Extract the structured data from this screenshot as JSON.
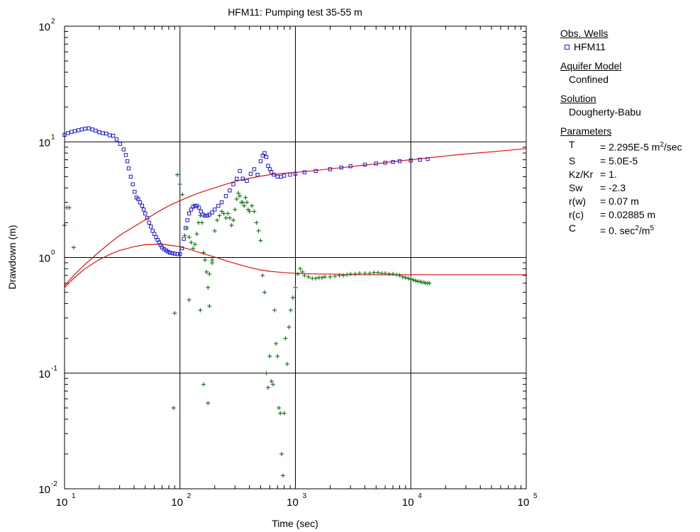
{
  "chart_data": {
    "type": "scatter",
    "title": "HFM11: Pumping test 35-55 m",
    "xlabel": "Time (sec)",
    "ylabel": "Drawdown (m)",
    "x_scale": "log",
    "y_scale": "log",
    "xlim": [
      10,
      100000
    ],
    "ylim": [
      0.01,
      100
    ],
    "grid": true,
    "x_ticks": [
      {
        "base": "10",
        "exp": "1"
      },
      {
        "base": "10",
        "exp": "2"
      },
      {
        "base": "10",
        "exp": "3"
      },
      {
        "base": "10",
        "exp": "4"
      },
      {
        "base": "10",
        "exp": "5"
      }
    ],
    "y_ticks": [
      {
        "base": "10",
        "exp": "-2"
      },
      {
        "base": "10",
        "exp": "-1"
      },
      {
        "base": "10",
        "exp": "0"
      },
      {
        "base": "10",
        "exp": "1"
      },
      {
        "base": "10",
        "exp": "2"
      }
    ],
    "colors": {
      "observed": "#1a1ad6",
      "derivative": "#1a7a1a",
      "fit": "#e01010"
    },
    "series": [
      {
        "name": "HFM11",
        "marker": "square",
        "color": "#1a1ad6",
        "x": [
          10,
          10.7,
          11.5,
          12.3,
          13.2,
          14.1,
          15.1,
          16.2,
          17.4,
          18.6,
          20,
          21.4,
          23,
          24.6,
          26.4,
          28.3,
          30.3,
          32.5,
          34,
          35,
          36,
          37.5,
          39,
          40.5,
          42,
          43.5,
          45,
          47,
          48.5,
          50,
          52,
          54,
          56,
          58,
          60,
          62,
          64,
          66,
          68,
          70,
          73,
          76,
          79,
          82,
          86,
          90,
          95,
          100,
          104,
          108,
          112,
          116,
          120,
          125,
          130,
          135,
          140,
          146,
          152,
          158,
          165,
          172,
          180,
          190,
          200,
          215,
          230,
          250,
          270,
          290,
          310,
          330,
          350,
          380,
          410,
          440,
          470,
          500,
          520,
          540,
          560,
          580,
          600,
          620,
          650,
          700,
          750,
          800,
          900,
          1000,
          1200,
          1500,
          2000,
          2500,
          3000,
          4000,
          5000,
          6000,
          7000,
          8000,
          10000,
          12000,
          14000
        ],
        "y": [
          11.5,
          11.9,
          12.2,
          12.4,
          12.6,
          12.8,
          13,
          13.1,
          12.8,
          12.5,
          12.1,
          11.9,
          11.8,
          11.4,
          11.3,
          10.5,
          9.6,
          8.6,
          7.7,
          6.8,
          5.9,
          5,
          4.3,
          3.7,
          3.3,
          3.2,
          3.0,
          2.8,
          2.6,
          2.4,
          2.2,
          2.0,
          1.85,
          1.7,
          1.6,
          1.5,
          1.42,
          1.35,
          1.28,
          1.22,
          1.18,
          1.15,
          1.12,
          1.1,
          1.09,
          1.08,
          1.07,
          1.07,
          1.2,
          1.45,
          1.8,
          2.1,
          2.4,
          2.6,
          2.75,
          2.8,
          2.8,
          2.7,
          2.5,
          2.35,
          2.3,
          2.3,
          2.35,
          2.45,
          2.6,
          2.8,
          3.0,
          3.4,
          3.8,
          4.3,
          4.8,
          5.6,
          4.8,
          4.6,
          5.3,
          5.8,
          5.2,
          6.8,
          7.6,
          8.0,
          7.4,
          6.2,
          5.8,
          5.5,
          5.2,
          5.0,
          5.0,
          5.1,
          5.2,
          5.3,
          5.45,
          5.6,
          5.8,
          6.0,
          6.15,
          6.35,
          6.5,
          6.6,
          6.7,
          6.8,
          6.9,
          7.0,
          7.1
        ]
      },
      {
        "name": "",
        "marker": "plus",
        "color": "#1a7a1a",
        "x": [
          10,
          10.5,
          11,
          12,
          88,
          90,
          95,
          100,
          105,
          110,
          115,
          120,
          125,
          130,
          135,
          140,
          145,
          150,
          155,
          160,
          165,
          170,
          175,
          180,
          190,
          200,
          210,
          220,
          230,
          240,
          250,
          260,
          270,
          280,
          290,
          300,
          310,
          320,
          330,
          340,
          350,
          360,
          370,
          380,
          390,
          400,
          420,
          440,
          460,
          480,
          500,
          520,
          540,
          560,
          580,
          600,
          620,
          640,
          660,
          680,
          700,
          720,
          740,
          760,
          780,
          800,
          820,
          850,
          880,
          910,
          950,
          1000,
          1050,
          1100,
          1150,
          1200,
          1300,
          1400,
          1500,
          1600,
          1700,
          1800,
          2000,
          2200,
          2400,
          2600,
          2800,
          3000,
          3300,
          3600,
          4000,
          4400,
          4800,
          5200,
          5600,
          6000,
          6500,
          7000,
          7500,
          8000,
          8500,
          9000,
          9500,
          10000,
          10500,
          11000,
          11500,
          12000,
          12500,
          13000,
          13500,
          14000,
          14500,
          160,
          175,
          120,
          180,
          150,
          190
        ],
        "y": [
          1.9,
          2.7,
          2.7,
          1.22,
          0.05,
          0.33,
          5.2,
          4.3,
          3.5,
          1.55,
          1.8,
          1.5,
          1.35,
          1.2,
          1.3,
          1.6,
          2.0,
          2.3,
          2.0,
          1.1,
          0.95,
          0.75,
          0.55,
          0.72,
          0.95,
          1.7,
          2.1,
          2.3,
          2.5,
          2.4,
          2.2,
          2.4,
          2.2,
          1.9,
          2.1,
          2.6,
          3.2,
          3.6,
          3.4,
          3.0,
          3.0,
          2.8,
          3.3,
          3.0,
          2.6,
          2.5,
          2.8,
          2.5,
          2.0,
          1.7,
          1.4,
          0.7,
          0.5,
          0.1,
          0.075,
          0.14,
          0.085,
          0.08,
          0.35,
          0.18,
          0.14,
          0.05,
          0.045,
          0.02,
          0.013,
          0.045,
          0.2,
          0.12,
          0.25,
          0.35,
          0.45,
          0.55,
          0.72,
          0.8,
          0.75,
          0.7,
          0.68,
          0.66,
          0.66,
          0.67,
          0.67,
          0.68,
          0.68,
          0.69,
          0.7,
          0.7,
          0.71,
          0.72,
          0.72,
          0.73,
          0.73,
          0.73,
          0.74,
          0.74,
          0.73,
          0.73,
          0.72,
          0.72,
          0.71,
          0.7,
          0.68,
          0.67,
          0.66,
          0.65,
          0.64,
          0.63,
          0.62,
          0.62,
          0.61,
          0.61,
          0.6,
          0.6,
          0.6,
          0.08,
          0.055,
          0.43,
          0.38,
          0.35,
          0.9
        ]
      },
      {
        "name": "",
        "marker": "line",
        "color": "#e01010",
        "x": [
          10,
          12,
          15,
          20,
          25,
          30,
          40,
          50,
          60,
          70,
          80,
          100,
          120,
          150,
          200,
          250,
          300,
          400,
          500,
          600,
          800,
          1000,
          1500,
          2000,
          3000,
          5000,
          7000,
          10000,
          20000,
          30000,
          50000,
          70000,
          100000
        ],
        "y": [
          0.57,
          0.7,
          0.87,
          1.12,
          1.35,
          1.55,
          1.85,
          2.12,
          2.38,
          2.6,
          2.8,
          3.1,
          3.35,
          3.65,
          4.0,
          4.3,
          4.55,
          4.85,
          5.05,
          5.2,
          5.35,
          5.45,
          5.65,
          5.85,
          6.1,
          6.45,
          6.75,
          7.0,
          7.55,
          7.85,
          8.2,
          8.45,
          8.75
        ]
      },
      {
        "name": "",
        "marker": "line",
        "color": "#e01010",
        "x": [
          10,
          12,
          15,
          20,
          25,
          30,
          40,
          50,
          60,
          70,
          80,
          100,
          120,
          150,
          200,
          250,
          300,
          400,
          500,
          600,
          800,
          1000,
          1500,
          2000,
          3000,
          5000,
          10000,
          20000,
          50000,
          100000
        ],
        "y": [
          0.55,
          0.66,
          0.8,
          0.96,
          1.07,
          1.15,
          1.24,
          1.29,
          1.3,
          1.3,
          1.28,
          1.24,
          1.18,
          1.1,
          1.01,
          0.94,
          0.89,
          0.82,
          0.78,
          0.76,
          0.74,
          0.73,
          0.72,
          0.72,
          0.71,
          0.71,
          0.71,
          0.71,
          0.71,
          0.71
        ]
      }
    ]
  },
  "side": {
    "obs_header": "Obs. Wells",
    "obs_item": "HFM11",
    "aquifer_header": "Aquifer Model",
    "aquifer_value": "Confined",
    "solution_header": "Solution",
    "solution_value": "Dougherty-Babu",
    "params_header": "Parameters",
    "params": [
      {
        "name": "T",
        "value": "= 2.295E-5 m",
        "sup": "2",
        "suffix": "/sec"
      },
      {
        "name": "S",
        "value": "= 5.0E-5",
        "sup": "",
        "suffix": ""
      },
      {
        "name": "Kz/Kr",
        "value": "= 1.",
        "sup": "",
        "suffix": ""
      },
      {
        "name": "Sw",
        "value": "= -2.3",
        "sup": "",
        "suffix": ""
      },
      {
        "name": "r(w)",
        "value": "= 0.07 m",
        "sup": "",
        "suffix": ""
      },
      {
        "name": "r(c)",
        "value": "= 0.02885 m",
        "sup": "",
        "suffix": ""
      },
      {
        "name": "C",
        "value": "= 0. sec",
        "sup": "2",
        "suffix": "/m",
        "sup2": "5"
      }
    ]
  }
}
